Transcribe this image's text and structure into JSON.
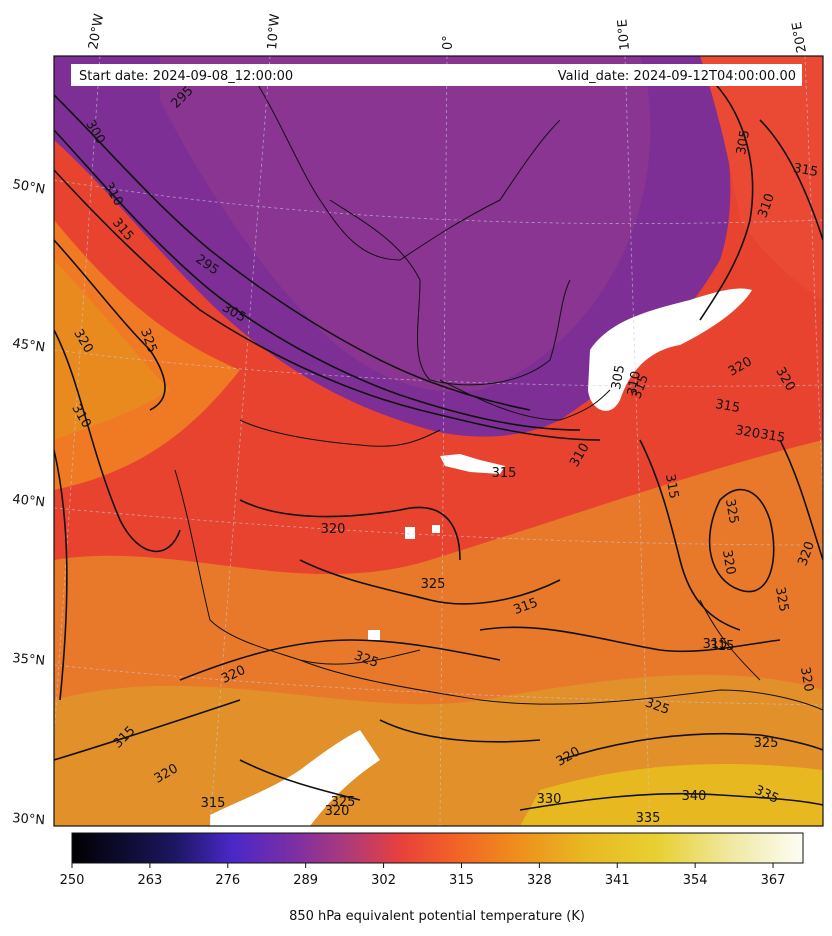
{
  "header": {
    "start_date": "Start date: 2024-09-08_12:00:00",
    "valid_date": "Valid_date: 2024-09-12T04:00:00.00"
  },
  "axes": {
    "longitude_labels": [
      "20°W",
      "10°W",
      "0°",
      "10°E",
      "20°E"
    ],
    "latitude_labels": [
      "50°N",
      "45°N",
      "40°N",
      "35°N",
      "30°N"
    ]
  },
  "colorbar": {
    "label": "850 hPa equivalent potential temperature (K)",
    "ticks": [
      "250",
      "263",
      "276",
      "289",
      "302",
      "315",
      "328",
      "341",
      "354",
      "367"
    ],
    "range": [
      250,
      372
    ],
    "colormap": "CMRmap-like",
    "colors": [
      "#000000",
      "#3a1c8c",
      "#7b2fa6",
      "#e8413a",
      "#f07820",
      "#e8c020",
      "#fbfbf0"
    ]
  },
  "contour_labels": [
    {
      "text": "295"
    },
    {
      "text": "300"
    },
    {
      "text": "310"
    },
    {
      "text": "315"
    },
    {
      "text": "295"
    },
    {
      "text": "305"
    },
    {
      "text": "320"
    },
    {
      "text": "325"
    },
    {
      "text": "310"
    },
    {
      "text": "305"
    },
    {
      "text": "310"
    },
    {
      "text": "315"
    },
    {
      "text": "315"
    },
    {
      "text": "305"
    },
    {
      "text": "310"
    },
    {
      "text": "315"
    },
    {
      "text": "310"
    },
    {
      "text": "315"
    },
    {
      "text": "320"
    },
    {
      "text": "320"
    },
    {
      "text": "315"
    },
    {
      "text": "315"
    },
    {
      "text": "320"
    },
    {
      "text": "320"
    },
    {
      "text": "325"
    },
    {
      "text": "320"
    },
    {
      "text": "325"
    },
    {
      "text": "315"
    },
    {
      "text": "320"
    },
    {
      "text": "325"
    },
    {
      "text": "315"
    },
    {
      "text": "320"
    },
    {
      "text": "315"
    },
    {
      "text": "325"
    },
    {
      "text": "320"
    },
    {
      "text": "325"
    },
    {
      "text": "320"
    },
    {
      "text": "330"
    },
    {
      "text": "340"
    },
    {
      "text": "335"
    },
    {
      "text": "335"
    },
    {
      "text": "320"
    },
    {
      "text": "325"
    },
    {
      "text": "315"
    },
    {
      "text": "320"
    },
    {
      "text": "315"
    },
    {
      "text": "325"
    }
  ]
}
